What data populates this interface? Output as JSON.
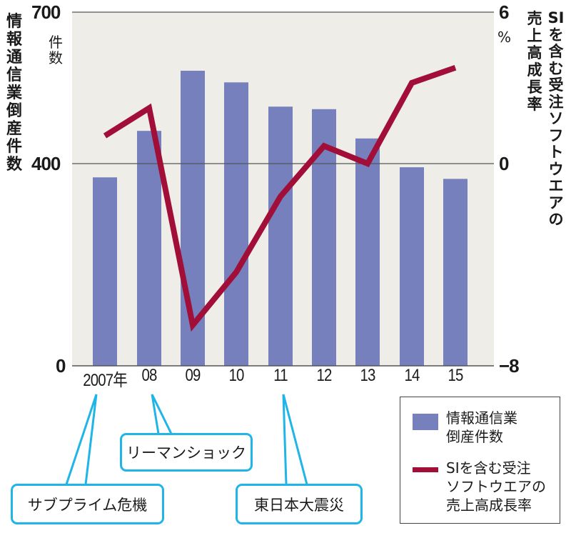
{
  "chart_data": {
    "type": "bar",
    "title": "",
    "categories": [
      "2007年",
      "08",
      "09",
      "10",
      "11",
      "12",
      "13",
      "14",
      "15"
    ],
    "series": [
      {
        "name": "情報通信業倒産件数",
        "type": "bar",
        "axis": "left",
        "color": "#7580bd",
        "values": [
          373,
          465,
          584,
          561,
          513,
          508,
          450,
          393,
          370
        ]
      },
      {
        "name": "SIを含む受注ソフトウエアの売上高成長率",
        "type": "line",
        "axis": "right",
        "color": "#a10e38",
        "values": [
          1.1,
          2.2,
          -6.4,
          -4.3,
          -1.3,
          0.7,
          0.0,
          3.2,
          3.8
        ]
      }
    ],
    "y_left": {
      "label": "情報通信業倒産件数",
      "unit": "件数",
      "ticks": [
        0,
        400,
        700
      ],
      "ylim": [
        0,
        700
      ]
    },
    "y_right": {
      "label": "SIを含む受注ソフトウエアの売上高成長率",
      "unit": "%",
      "ticks": [
        -8,
        0,
        6
      ],
      "ylim": [
        -8,
        6
      ]
    },
    "xlabel": "",
    "grid": "reference line at 400 / 0",
    "legend_position": "bottom-right",
    "annotations": [
      {
        "text": "サブプライム危機",
        "x": "2007年"
      },
      {
        "text": "リーマンショック",
        "x": "08"
      },
      {
        "text": "東日本大震災",
        "x": "11"
      }
    ]
  },
  "axes": {
    "left_title": "情報通信業倒産件数",
    "left_unit": "件数",
    "left_ticks": {
      "top": "700",
      "mid": "400",
      "bottom": "0"
    },
    "right_title_col1": "SIを含む受注ソフトウエアの",
    "right_title_col2": "売上高成長率",
    "right_unit": "%",
    "right_ticks": {
      "top": "6",
      "mid": "0",
      "bottom": "−8"
    }
  },
  "x_labels": [
    "2007年",
    "08",
    "09",
    "10",
    "11",
    "12",
    "13",
    "14",
    "15"
  ],
  "legend": {
    "bar_label_1": "情報通信業",
    "bar_label_2": "倒産件数",
    "line_label_1": "SIを含む受注",
    "line_label_2": "ソフトウエアの",
    "line_label_3": "売上高成長率"
  },
  "callouts": {
    "subprime": "サブプライム危機",
    "lehman": "リーマンショック",
    "earthquake": "東日本大震災"
  },
  "colors": {
    "bar": "#7580bd",
    "line": "#a10e38",
    "plot_bg": "#eeede8",
    "callout": "#1fb5e6"
  }
}
